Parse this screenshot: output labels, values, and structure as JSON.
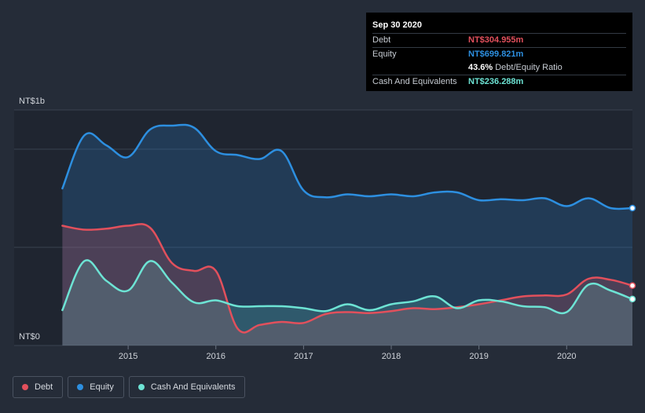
{
  "chart_data": {
    "type": "line",
    "title": "",
    "ylabel": "",
    "xlabel": "",
    "currency": "NT$",
    "ylim": [
      0,
      1.2
    ],
    "y_unit": "NT$ billions",
    "y_tick_labels": [
      {
        "value": 1.0,
        "label": "NT$1b"
      },
      {
        "value": 0,
        "label": "NT$0"
      }
    ],
    "x_ticks": [
      {
        "value": 2015,
        "label": "2015"
      },
      {
        "value": 2016,
        "label": "2016"
      },
      {
        "value": 2017,
        "label": "2017"
      },
      {
        "value": 2018,
        "label": "2018"
      },
      {
        "value": 2019,
        "label": "2019"
      },
      {
        "value": 2020,
        "label": "2020"
      }
    ],
    "xlim": [
      2013.7,
      2020.75
    ],
    "series": [
      {
        "name": "Equity",
        "color": "#2d8fe0",
        "x": [
          2014.25,
          2014.5,
          2014.75,
          2015.0,
          2015.25,
          2015.5,
          2015.75,
          2016.0,
          2016.25,
          2016.5,
          2016.75,
          2017.0,
          2017.25,
          2017.5,
          2017.75,
          2018.0,
          2018.25,
          2018.5,
          2018.75,
          2019.0,
          2019.25,
          2019.5,
          2019.75,
          2020.0,
          2020.25,
          2020.5,
          2020.75
        ],
        "values": [
          0.8,
          1.07,
          1.02,
          0.96,
          1.1,
          1.12,
          1.11,
          0.99,
          0.97,
          0.95,
          0.99,
          0.79,
          0.755,
          0.77,
          0.76,
          0.77,
          0.76,
          0.78,
          0.78,
          0.74,
          0.745,
          0.74,
          0.75,
          0.71,
          0.75,
          0.7,
          0.699821
        ]
      },
      {
        "name": "Debt",
        "color": "#e2505c",
        "x": [
          2014.25,
          2014.5,
          2014.75,
          2015.0,
          2015.25,
          2015.5,
          2015.75,
          2016.0,
          2016.25,
          2016.5,
          2016.75,
          2017.0,
          2017.25,
          2017.5,
          2017.75,
          2018.0,
          2018.25,
          2018.5,
          2018.75,
          2019.0,
          2019.25,
          2019.5,
          2019.75,
          2020.0,
          2020.25,
          2020.5,
          2020.75
        ],
        "values": [
          0.61,
          0.59,
          0.595,
          0.61,
          0.6,
          0.42,
          0.38,
          0.38,
          0.085,
          0.105,
          0.12,
          0.115,
          0.16,
          0.17,
          0.165,
          0.175,
          0.19,
          0.185,
          0.195,
          0.21,
          0.23,
          0.25,
          0.255,
          0.26,
          0.34,
          0.335,
          0.304955
        ]
      },
      {
        "name": "Cash And Equivalents",
        "color": "#6de3d4",
        "x": [
          2014.25,
          2014.5,
          2014.75,
          2015.0,
          2015.25,
          2015.5,
          2015.75,
          2016.0,
          2016.25,
          2016.5,
          2016.75,
          2017.0,
          2017.25,
          2017.5,
          2017.75,
          2018.0,
          2018.25,
          2018.5,
          2018.75,
          2019.0,
          2019.25,
          2019.5,
          2019.75,
          2020.0,
          2020.25,
          2020.5,
          2020.75
        ],
        "values": [
          0.18,
          0.43,
          0.33,
          0.28,
          0.43,
          0.32,
          0.22,
          0.23,
          0.2,
          0.2,
          0.2,
          0.19,
          0.175,
          0.21,
          0.18,
          0.21,
          0.225,
          0.25,
          0.19,
          0.23,
          0.225,
          0.2,
          0.195,
          0.17,
          0.31,
          0.28,
          0.236288
        ]
      }
    ],
    "tooltip": {
      "date": "Sep 30 2020",
      "debt_label": "Debt",
      "debt_value": "NT$304.955m",
      "equity_label": "Equity",
      "equity_value": "NT$699.821m",
      "ratio_value": "43.6%",
      "ratio_label": "Debt/Equity Ratio",
      "cash_label": "Cash And Equivalents",
      "cash_value": "NT$236.288m"
    },
    "legend": [
      {
        "name": "Debt",
        "color": "#e2505c"
      },
      {
        "name": "Equity",
        "color": "#2d8fe0"
      },
      {
        "name": "Cash And Equivalents",
        "color": "#6de3d4"
      }
    ]
  }
}
